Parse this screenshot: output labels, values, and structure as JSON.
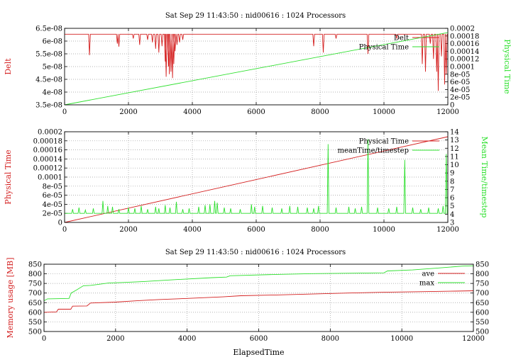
{
  "colors": {
    "red": "#d42020",
    "green": "#2ee02e",
    "grid": "#9a9a9a",
    "axis": "#000000"
  },
  "chart_data": [
    {
      "type": "line",
      "title": "Sat Sep 29 11:43:50 : nid00616 : 1024 Processors",
      "xlabel": "",
      "ylabel_left": "Delt",
      "ylabel_right": "Physical Time",
      "xlim": [
        0,
        12000
      ],
      "ylim_left": [
        3.5e-08,
        6.5e-08
      ],
      "ylim_right": [
        0,
        0.0002
      ],
      "x_ticks": [
        "0",
        "2000",
        "4000",
        "6000",
        "8000",
        "10000",
        "12000"
      ],
      "y_ticks_left": [
        "3.5e-08",
        "4e-08",
        "4.5e-08",
        "5e-08",
        "5.5e-08",
        "6e-08",
        "6.5e-08"
      ],
      "y_ticks_right": [
        "0",
        "2e-05",
        "4e-05",
        "6e-05",
        "8e-05",
        "0.0001",
        "0.00012",
        "0.00014",
        "0.00016",
        "0.00018",
        "0.0002"
      ],
      "grid": true,
      "legend_position": "top-right",
      "series": [
        {
          "name": "Delt",
          "axis": "left",
          "color": "#d42020",
          "baseline": 6.27e-08,
          "dips": [
            [
              780,
              5.45e-08
            ],
            [
              1650,
              5.9e-08
            ],
            [
              1700,
              5.78e-08
            ],
            [
              2150,
              6.1e-08
            ],
            [
              2350,
              5.85e-08
            ],
            [
              2600,
              6.05e-08
            ],
            [
              2750,
              5.95e-08
            ],
            [
              2850,
              5.7e-08
            ],
            [
              2950,
              5.55e-08
            ],
            [
              3050,
              5.8e-08
            ],
            [
              3150,
              5.2e-08
            ],
            [
              3180,
              4.6e-08
            ],
            [
              3250,
              5e-08
            ],
            [
              3280,
              4.7e-08
            ],
            [
              3330,
              4.8e-08
            ],
            [
              3380,
              4.55e-08
            ],
            [
              3420,
              5.1e-08
            ],
            [
              3460,
              5.6e-08
            ],
            [
              3520,
              5.85e-08
            ],
            [
              3600,
              5.95e-08
            ],
            [
              3700,
              6.05e-08
            ],
            [
              7800,
              5.8e-08
            ],
            [
              8100,
              5.55e-08
            ],
            [
              8500,
              6.1e-08
            ],
            [
              9500,
              5.5e-08
            ],
            [
              10400,
              6.1e-08
            ],
            [
              11200,
              5.1e-08
            ],
            [
              11300,
              4.8e-08
            ],
            [
              11450,
              5.9e-08
            ],
            [
              11550,
              5.3e-08
            ],
            [
              11650,
              4.8e-08
            ],
            [
              11700,
              4.05e-08
            ],
            [
              11800,
              5.4e-08
            ],
            [
              11900,
              4.3e-08
            ],
            [
              11950,
              4.7e-08
            ]
          ]
        },
        {
          "name": "Physical Time",
          "axis": "right",
          "color": "#2ee02e",
          "points": [
            [
              0,
              0.0
            ],
            [
              12000,
              0.000189
            ]
          ]
        }
      ]
    },
    {
      "type": "line",
      "title": "",
      "xlabel": "",
      "ylabel_left": "Physical Time",
      "ylabel_right": "Mean Time/timestep",
      "xlim": [
        0,
        12000
      ],
      "ylim_left": [
        0,
        0.0002
      ],
      "ylim_right": [
        3,
        14
      ],
      "x_ticks": [
        "0",
        "2000",
        "4000",
        "6000",
        "8000",
        "10000",
        "12000"
      ],
      "y_ticks_left": [
        "0",
        "2e-05",
        "4e-05",
        "6e-05",
        "8e-05",
        "0.0001",
        "0.00012",
        "0.00014",
        "0.00016",
        "0.00018",
        "0.0002"
      ],
      "y_ticks_right": [
        "3",
        "4",
        "5",
        "6",
        "7",
        "8",
        "9",
        "10",
        "11",
        "12",
        "13",
        "14"
      ],
      "grid": true,
      "legend_position": "top-right",
      "series": [
        {
          "name": "Physical Time",
          "axis": "left",
          "color": "#d42020",
          "points": [
            [
              0,
              0.0
            ],
            [
              12000,
              0.000189
            ]
          ]
        },
        {
          "name": "meanTime/timestep",
          "axis": "right",
          "color": "#2ee02e",
          "baseline": 4.1,
          "spikes": [
            [
              250,
              4.6
            ],
            [
              450,
              4.8
            ],
            [
              650,
              4.5
            ],
            [
              900,
              4.7
            ],
            [
              1200,
              5.6
            ],
            [
              1350,
              5.0
            ],
            [
              1500,
              4.9
            ],
            [
              1700,
              4.6
            ],
            [
              2000,
              4.8
            ],
            [
              2200,
              4.7
            ],
            [
              2400,
              5.0
            ],
            [
              2600,
              4.6
            ],
            [
              2850,
              4.9
            ],
            [
              2950,
              4.7
            ],
            [
              3150,
              5.1
            ],
            [
              3300,
              4.8
            ],
            [
              3500,
              5.5
            ],
            [
              3700,
              4.6
            ],
            [
              3900,
              4.7
            ],
            [
              4200,
              4.9
            ],
            [
              4400,
              5.1
            ],
            [
              4550,
              5.2
            ],
            [
              4700,
              5.6
            ],
            [
              4780,
              5.4
            ],
            [
              5000,
              4.8
            ],
            [
              5200,
              4.7
            ],
            [
              5500,
              4.6
            ],
            [
              5850,
              5.2
            ],
            [
              5950,
              4.9
            ],
            [
              6200,
              5.0
            ],
            [
              6500,
              4.8
            ],
            [
              6800,
              4.7
            ],
            [
              7050,
              5.0
            ],
            [
              7300,
              4.9
            ],
            [
              7600,
              4.8
            ],
            [
              7800,
              4.7
            ],
            [
              7950,
              5.0
            ],
            [
              8250,
              12.5
            ],
            [
              8500,
              4.8
            ],
            [
              8900,
              4.9
            ],
            [
              9100,
              4.7
            ],
            [
              9300,
              4.9
            ],
            [
              9500,
              13.1
            ],
            [
              9800,
              4.8
            ],
            [
              10150,
              4.7
            ],
            [
              10400,
              4.9
            ],
            [
              10650,
              10.6
            ],
            [
              10900,
              4.8
            ],
            [
              11150,
              4.6
            ],
            [
              11400,
              4.8
            ],
            [
              11700,
              4.7
            ],
            [
              11850,
              5.0
            ],
            [
              11950,
              11.3
            ]
          ]
        }
      ]
    },
    {
      "type": "line",
      "title": "Sat Sep 29 11:43:50 : nid00616 : 1024 Processors",
      "xlabel": "ElapsedTime",
      "ylabel_left": "Memory usage [MB]",
      "ylabel_right": "",
      "xlim": [
        0,
        12000
      ],
      "ylim_left": [
        500,
        850
      ],
      "ylim_right": [
        500,
        850
      ],
      "x_ticks": [
        "0",
        "2000",
        "4000",
        "6000",
        "8000",
        "10000",
        "12000"
      ],
      "y_ticks_left": [
        "500",
        "550",
        "600",
        "650",
        "700",
        "750",
        "800",
        "850"
      ],
      "y_ticks_right": [
        "500",
        "550",
        "600",
        "650",
        "700",
        "750",
        "800",
        "850"
      ],
      "grid": true,
      "legend_position": "top-right",
      "series": [
        {
          "name": "ave",
          "axis": "left",
          "color": "#d42020",
          "points": [
            [
              0,
              600
            ],
            [
              350,
              602
            ],
            [
              400,
              616
            ],
            [
              750,
              616
            ],
            [
              800,
              632
            ],
            [
              1200,
              633
            ],
            [
              1300,
              648
            ],
            [
              2000,
              653
            ],
            [
              2600,
              660
            ],
            [
              3200,
              666
            ],
            [
              4000,
              672
            ],
            [
              5000,
              680
            ],
            [
              5500,
              686
            ],
            [
              6500,
              690
            ],
            [
              7500,
              695
            ],
            [
              8500,
              700
            ],
            [
              9500,
              704
            ],
            [
              10500,
              707
            ],
            [
              11500,
              710
            ],
            [
              12000,
              712
            ]
          ]
        },
        {
          "name": "max",
          "axis": "left",
          "color": "#2ee02e",
          "points": [
            [
              0,
              660
            ],
            [
              100,
              670
            ],
            [
              700,
              672
            ],
            [
              760,
              700
            ],
            [
              900,
              715
            ],
            [
              1100,
              738
            ],
            [
              1300,
              740
            ],
            [
              1800,
              752
            ],
            [
              2200,
              755
            ],
            [
              2800,
              760
            ],
            [
              3700,
              770
            ],
            [
              4700,
              780
            ],
            [
              5100,
              783
            ],
            [
              5200,
              790
            ],
            [
              6500,
              797
            ],
            [
              7500,
              801
            ],
            [
              9500,
              805
            ],
            [
              9600,
              815
            ],
            [
              10300,
              820
            ],
            [
              11000,
              830
            ],
            [
              11700,
              840
            ],
            [
              12000,
              842
            ]
          ]
        }
      ]
    }
  ]
}
